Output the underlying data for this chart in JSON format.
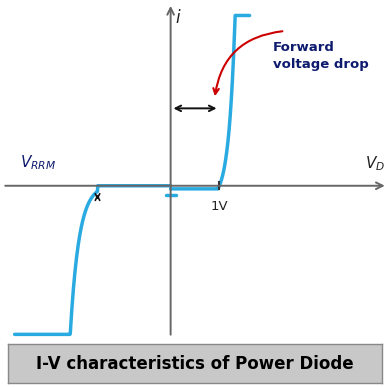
{
  "background_color": "#ffffff",
  "curve_color": "#29abe2",
  "curve_linewidth": 2.5,
  "axis_color": "#666666",
  "title_text": "I-V characteristics of Power Diode",
  "title_fontsize": 12,
  "title_bold": true,
  "title_box_color": "#c8c8c8",
  "label_i": "i",
  "label_vd": "V_D",
  "label_1v": "1V",
  "annotation_text": "Forward\nvoltage drop",
  "annotation_color": "#0d1a6e",
  "arrow_color": "#cc0000",
  "double_arrow_color": "#111111",
  "vrrm_arrow_color": "#111111",
  "vrrm_label_color": "#0d1a6e",
  "xlim": [
    -3.5,
    4.5
  ],
  "ylim": [
    -5.0,
    6.0
  ],
  "x_break": -1.5,
  "x_knee": 1.0
}
